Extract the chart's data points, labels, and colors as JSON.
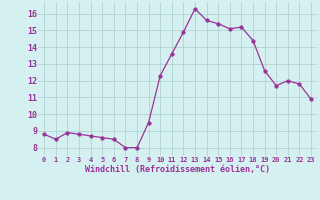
{
  "x": [
    0,
    1,
    2,
    3,
    4,
    5,
    6,
    7,
    8,
    9,
    10,
    11,
    12,
    13,
    14,
    15,
    16,
    17,
    18,
    19,
    20,
    21,
    22,
    23
  ],
  "y": [
    8.8,
    8.5,
    8.9,
    8.8,
    8.7,
    8.6,
    8.5,
    8.0,
    8.0,
    9.5,
    12.3,
    13.6,
    14.9,
    16.3,
    15.6,
    15.4,
    15.1,
    15.2,
    14.4,
    12.6,
    11.7,
    12.0,
    11.8,
    10.9
  ],
  "line_color": "#993399",
  "marker": "o",
  "marker_size": 2.5,
  "bg_color": "#d5f0f0",
  "grid_color": "#aacccc",
  "xlabel": "Windchill (Refroidissement éolien,°C)",
  "xlabel_color": "#993399",
  "tick_color": "#993399",
  "label_color": "#993399",
  "ylim": [
    7.5,
    16.7
  ],
  "xlim": [
    -0.5,
    23.5
  ],
  "yticks": [
    8,
    9,
    10,
    11,
    12,
    13,
    14,
    15,
    16
  ],
  "xticks": [
    0,
    1,
    2,
    3,
    4,
    5,
    6,
    7,
    8,
    9,
    10,
    11,
    12,
    13,
    14,
    15,
    16,
    17,
    18,
    19,
    20,
    21,
    22,
    23
  ]
}
